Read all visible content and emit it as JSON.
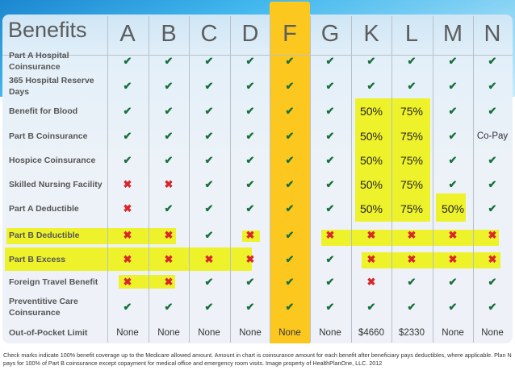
{
  "header": {
    "title": "Benefits",
    "plans": [
      "A",
      "B",
      "C",
      "D",
      "F",
      "G",
      "K",
      "L",
      "M",
      "N"
    ]
  },
  "colors": {
    "highlight_column": "#fcc81f",
    "highlight_marker": "#eef22a",
    "check": "#16703a",
    "cross": "#d9262b"
  },
  "rows": [
    {
      "label": "Part A Hospital Coinsurance",
      "values": [
        "check",
        "check",
        "check",
        "check",
        "check",
        "check",
        "check",
        "check",
        "check",
        "check"
      ]
    },
    {
      "label": "365 Hospital Reserve Days",
      "values": [
        "check",
        "check",
        "check",
        "check",
        "check",
        "check",
        "check",
        "check",
        "check",
        "check"
      ]
    },
    {
      "label": "Benefit for Blood",
      "values": [
        "check",
        "check",
        "check",
        "check",
        "check",
        "check",
        "50%",
        "75%",
        "check",
        "check"
      ]
    },
    {
      "label": "Part B Coinsurance",
      "values": [
        "check",
        "check",
        "check",
        "check",
        "check",
        "check",
        "50%",
        "75%",
        "check",
        "Co-Pay"
      ]
    },
    {
      "label": "Hospice Coinsurance",
      "values": [
        "check",
        "check",
        "check",
        "check",
        "check",
        "check",
        "50%",
        "75%",
        "check",
        "check"
      ]
    },
    {
      "label": "Skilled Nursing Facility",
      "values": [
        "x",
        "x",
        "check",
        "check",
        "check",
        "check",
        "50%",
        "75%",
        "check",
        "check"
      ]
    },
    {
      "label": "Part A Deductible",
      "values": [
        "x",
        "check",
        "check",
        "check",
        "check",
        "check",
        "50%",
        "75%",
        "50%",
        "check"
      ]
    },
    {
      "label": "Part B Deductible",
      "values": [
        "x",
        "x",
        "check",
        "x",
        "check",
        "x",
        "x",
        "x",
        "x",
        "x"
      ]
    },
    {
      "label": "Part B Excess",
      "values": [
        "x",
        "x",
        "x",
        "x",
        "check",
        "check",
        "x",
        "x",
        "x",
        "x"
      ]
    },
    {
      "label": "Foreign Travel Benefit",
      "values": [
        "x",
        "x",
        "check",
        "check",
        "check",
        "check",
        "x",
        "check",
        "check",
        "check"
      ]
    },
    {
      "label": "Preventitive Care Coinsurance",
      "values": [
        "check",
        "check",
        "check",
        "check",
        "check",
        "check",
        "check",
        "check",
        "check",
        "check"
      ]
    },
    {
      "label": "Out-of-Pocket Limit",
      "values": [
        "None",
        "None",
        "None",
        "None",
        "None",
        "None",
        "$4660",
        "$2330",
        "None",
        "None"
      ]
    }
  ],
  "footnote": "Check marks indicate 100% benefit coverage up to the Medicare allowed amount. Amount in chart is coinsurance amount for each benefit after beneficiary pays deductibles, where applicable. Plan N pays for 100% of Part B coinsurance except copayment for medical office and emergency room visits. Image property of HealthPlanOne, LLC. 2012"
}
